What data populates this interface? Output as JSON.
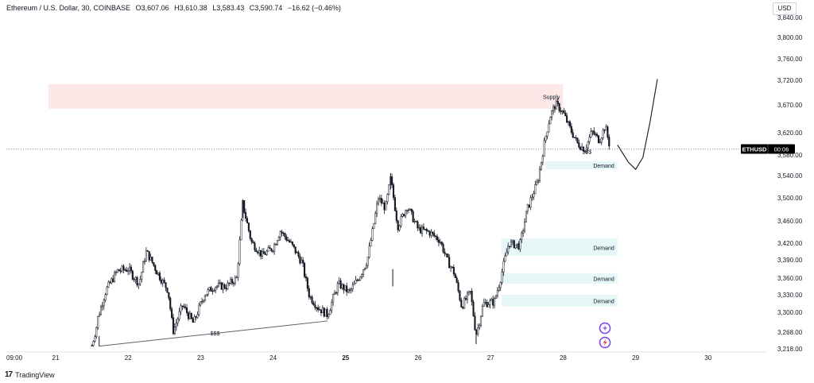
{
  "header": {
    "symbol": "Ethereum / U.S. Dollar, 30, COINBASE",
    "open": "O3,607.06",
    "high": "H3,610.38",
    "low": "L3,583.43",
    "close": "C3,590.74",
    "change": "−16.62 (−0.46%)"
  },
  "currency_label": "USD",
  "price_tag": {
    "symbol": "ETHUSD",
    "countdown": "00:06"
  },
  "brand": {
    "logo": "17",
    "name": "TradingView"
  },
  "chart_data": {
    "type": "candlestick",
    "interval": "30",
    "y_ticks": [
      3840,
      3800,
      3760,
      3720,
      3670,
      3620,
      3580,
      3540,
      3500,
      3460,
      3420,
      3390,
      3360,
      3330,
      3300,
      3268,
      3218
    ],
    "y_tick_labels": [
      "3,840.00",
      "3,800.00",
      "3,760.00",
      "3,720.00",
      "3,670.00",
      "3,620.00",
      "3,580.00",
      "3,540.00",
      "3,500.00",
      "3,460.00",
      "3,420.00",
      "3,390.00",
      "3,360.00",
      "3,330.00",
      "3,300.00",
      "3,268.00",
      "3,218.00"
    ],
    "x_tick_labels": [
      "09:00",
      "21",
      "22",
      "23",
      "24",
      "25",
      "26",
      "27",
      "28",
      "29",
      "30"
    ],
    "last_price": 3590.74,
    "zones": [
      {
        "label": "Supply",
        "from": 3663,
        "to": 3712,
        "color": "#fde8e8",
        "start_day": 20.9,
        "end_day": 28.0
      },
      {
        "label": "Demand",
        "from": 3552,
        "to": 3568,
        "color": "#e6f7f8",
        "start_day": 27.75,
        "end_day": 28.75
      },
      {
        "label": "Demand",
        "from": 3397,
        "to": 3428,
        "color": "#e6f7f8",
        "start_day": 27.15,
        "end_day": 28.75
      },
      {
        "label": "Demand",
        "from": 3350,
        "to": 3368,
        "color": "#e6f7f8",
        "start_day": 27.15,
        "end_day": 28.75
      },
      {
        "label": "Demand",
        "from": 3310,
        "to": 3330,
        "color": "#e6f7f8",
        "start_day": 27.15,
        "end_day": 28.75
      }
    ],
    "annotations": [
      {
        "text": "$$$",
        "day": 23.2,
        "price": 3258
      },
      {
        "text": "$$$",
        "day": 28.33,
        "price": 3582
      }
    ],
    "trendline": {
      "from": {
        "day": 21.6,
        "price": 3226
      },
      "to": {
        "day": 24.75,
        "price": 3286
      }
    },
    "path_points": [
      {
        "day": 21.5,
        "price": 3228
      },
      {
        "day": 21.58,
        "price": 3290
      },
      {
        "day": 21.7,
        "price": 3340
      },
      {
        "day": 21.85,
        "price": 3372
      },
      {
        "day": 22.0,
        "price": 3375
      },
      {
        "day": 22.15,
        "price": 3350
      },
      {
        "day": 22.25,
        "price": 3405
      },
      {
        "day": 22.4,
        "price": 3370
      },
      {
        "day": 22.55,
        "price": 3338
      },
      {
        "day": 22.62,
        "price": 3268
      },
      {
        "day": 22.75,
        "price": 3312
      },
      {
        "day": 22.9,
        "price": 3282
      },
      {
        "day": 23.05,
        "price": 3330
      },
      {
        "day": 23.2,
        "price": 3346
      },
      {
        "day": 23.35,
        "price": 3345
      },
      {
        "day": 23.5,
        "price": 3360
      },
      {
        "day": 23.58,
        "price": 3490
      },
      {
        "day": 23.7,
        "price": 3422
      },
      {
        "day": 23.85,
        "price": 3398
      },
      {
        "day": 24.0,
        "price": 3412
      },
      {
        "day": 24.1,
        "price": 3442
      },
      {
        "day": 24.25,
        "price": 3418
      },
      {
        "day": 24.4,
        "price": 3385
      },
      {
        "day": 24.5,
        "price": 3328
      },
      {
        "day": 24.62,
        "price": 3308
      },
      {
        "day": 24.75,
        "price": 3296
      },
      {
        "day": 24.9,
        "price": 3350
      },
      {
        "day": 25.05,
        "price": 3334
      },
      {
        "day": 25.2,
        "price": 3365
      },
      {
        "day": 25.3,
        "price": 3390
      },
      {
        "day": 25.45,
        "price": 3500
      },
      {
        "day": 25.55,
        "price": 3482
      },
      {
        "day": 25.62,
        "price": 3535
      },
      {
        "day": 25.72,
        "price": 3450
      },
      {
        "day": 25.85,
        "price": 3486
      },
      {
        "day": 26.0,
        "price": 3445
      },
      {
        "day": 26.15,
        "price": 3440
      },
      {
        "day": 26.3,
        "price": 3425
      },
      {
        "day": 26.4,
        "price": 3390
      },
      {
        "day": 26.5,
        "price": 3368
      },
      {
        "day": 26.6,
        "price": 3310
      },
      {
        "day": 26.72,
        "price": 3335
      },
      {
        "day": 26.8,
        "price": 3262
      },
      {
        "day": 26.9,
        "price": 3315
      },
      {
        "day": 27.05,
        "price": 3318
      },
      {
        "day": 27.12,
        "price": 3350
      },
      {
        "day": 27.25,
        "price": 3420
      },
      {
        "day": 27.4,
        "price": 3415
      },
      {
        "day": 27.5,
        "price": 3478
      },
      {
        "day": 27.65,
        "price": 3530
      },
      {
        "day": 27.75,
        "price": 3608
      },
      {
        "day": 27.82,
        "price": 3650
      },
      {
        "day": 27.9,
        "price": 3672
      },
      {
        "day": 28.0,
        "price": 3656
      },
      {
        "day": 28.1,
        "price": 3626
      },
      {
        "day": 28.2,
        "price": 3600
      },
      {
        "day": 28.3,
        "price": 3590
      },
      {
        "day": 28.4,
        "price": 3622
      },
      {
        "day": 28.5,
        "price": 3606
      },
      {
        "day": 28.58,
        "price": 3632
      },
      {
        "day": 28.65,
        "price": 3591
      }
    ],
    "projection": [
      {
        "day": 28.75,
        "price": 3598
      },
      {
        "day": 28.9,
        "price": 3566
      },
      {
        "day": 29.0,
        "price": 3552
      },
      {
        "day": 29.1,
        "price": 3575
      },
      {
        "day": 29.2,
        "price": 3640
      },
      {
        "day": 29.3,
        "price": 3722
      }
    ]
  }
}
